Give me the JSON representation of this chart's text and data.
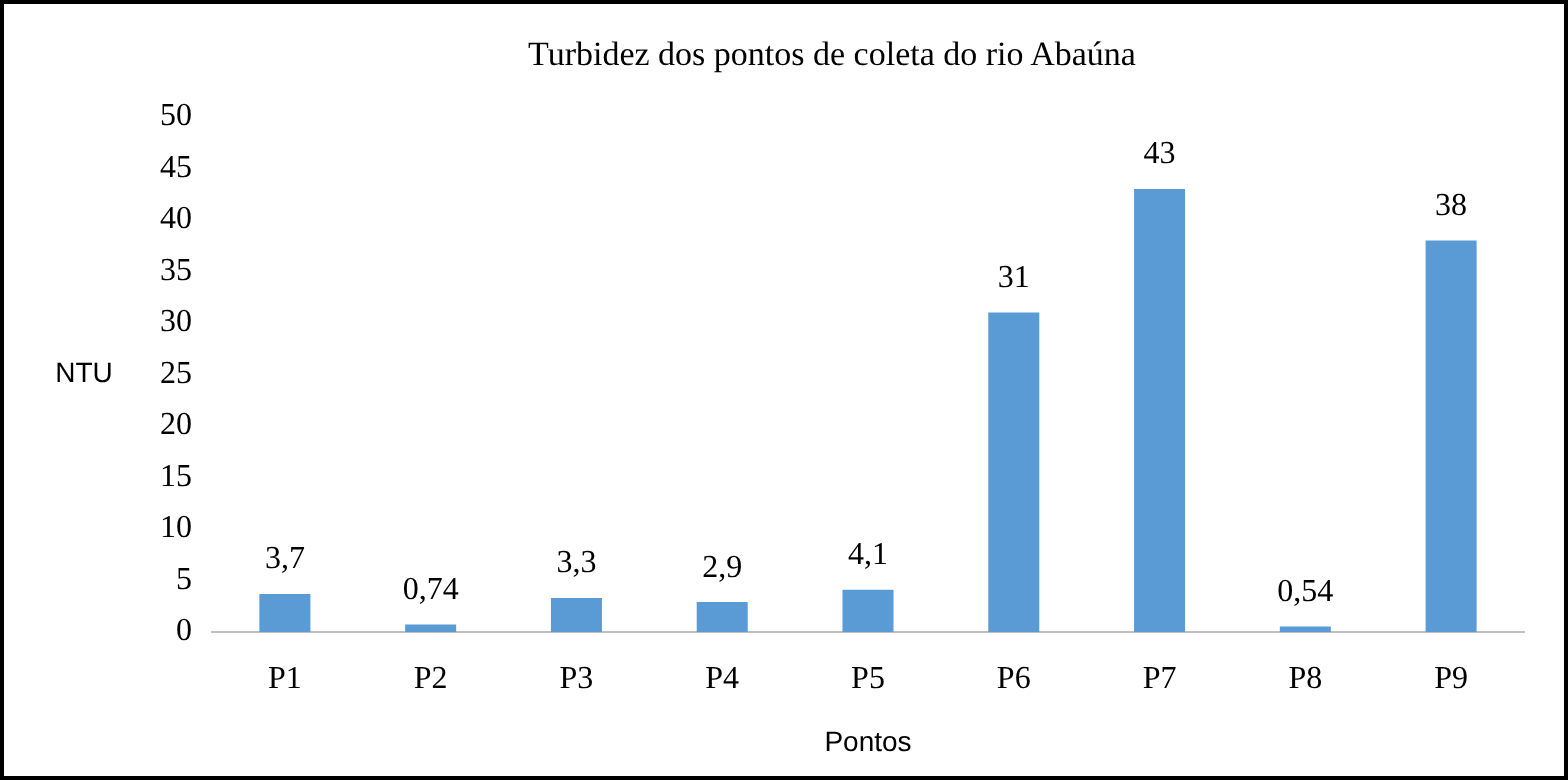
{
  "chart_data": {
    "type": "bar",
    "title": "Turbidez dos pontos de coleta do rio Abaúna",
    "xlabel": "Pontos",
    "ylabel": "NTU",
    "categories": [
      "P1",
      "P2",
      "P3",
      "P4",
      "P5",
      "P6",
      "P7",
      "P8",
      "P9"
    ],
    "values": [
      3.7,
      0.74,
      3.3,
      2.9,
      4.1,
      31,
      43,
      0.54,
      38
    ],
    "value_labels": [
      "3,7",
      "0,74",
      "3,3",
      "2,9",
      "4,1",
      "31",
      "43",
      "0,54",
      "38"
    ],
    "color": "#5b9bd5",
    "ylim": [
      0,
      50
    ],
    "yticks": [
      0,
      5,
      10,
      15,
      20,
      25,
      30,
      35,
      40,
      45,
      50
    ],
    "grid": false,
    "legend": false
  }
}
